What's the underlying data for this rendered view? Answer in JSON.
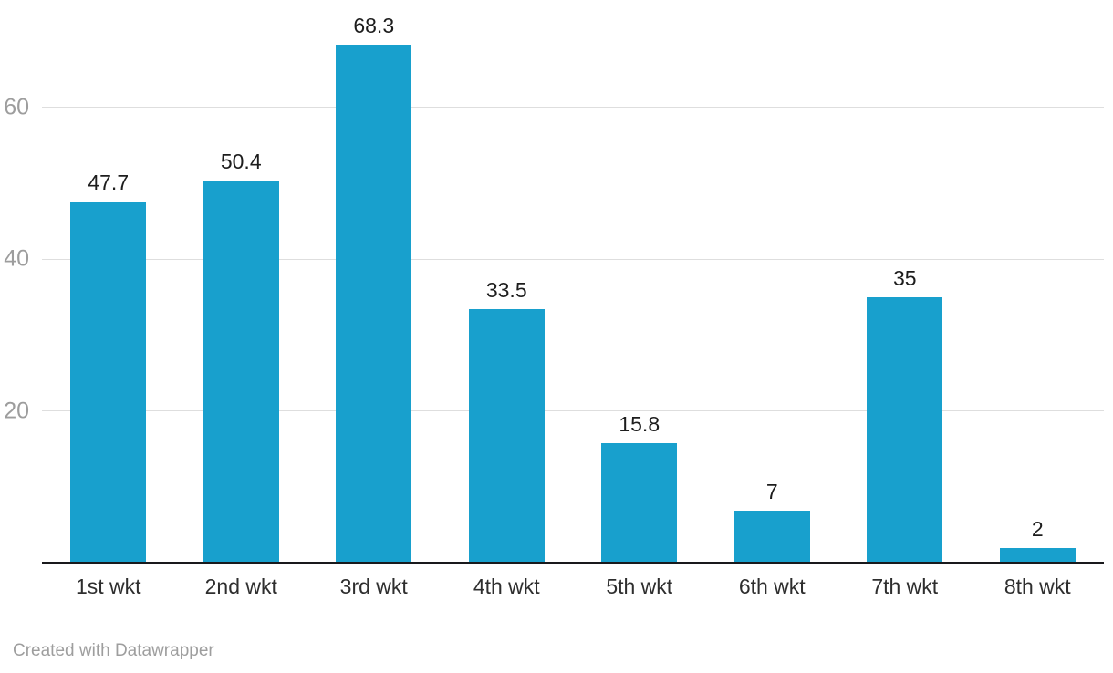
{
  "chart_data": {
    "type": "bar",
    "categories": [
      "1st wkt",
      "2nd wkt",
      "3rd wkt",
      "4th wkt",
      "5th wkt",
      "6th wkt",
      "7th wkt",
      "8th wkt"
    ],
    "values": [
      47.7,
      50.4,
      68.3,
      33.5,
      15.8,
      7,
      35,
      2
    ],
    "value_labels": [
      "47.7",
      "50.4",
      "68.3",
      "33.5",
      "15.8",
      "7",
      "35",
      "2"
    ],
    "yticks": [
      20,
      40,
      60
    ],
    "ylim": [
      0,
      74
    ],
    "grid": "horizontal",
    "legend": "none",
    "title": "",
    "xlabel": "",
    "ylabel": "",
    "bar_color": "#18a0cd"
  },
  "colors": {
    "bar": "#18a0cd",
    "gridline": "#dedede",
    "axis_line": "#19191c",
    "y_tick_label": "#9d9d9d",
    "x_tick_label": "#2e2e2e",
    "value_label": "#1d1d1d",
    "attribution": "#9e9e9e",
    "background": "#ffffff"
  },
  "footer": {
    "attribution": "Created with Datawrapper"
  }
}
